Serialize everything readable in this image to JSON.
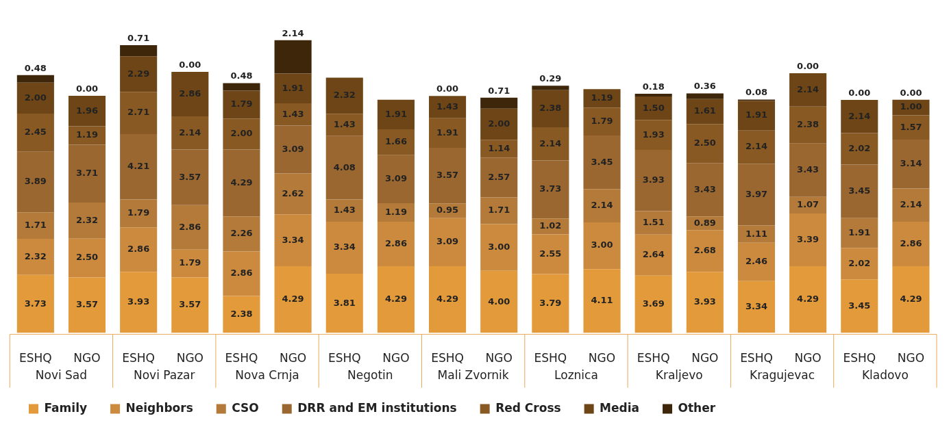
{
  "chart_data": {
    "type": "bar",
    "stacked": true,
    "legend": "bottom left",
    "categories": [
      "ESHQ",
      "NGO",
      "ESHQ",
      "NGO",
      "ESHQ",
      "NGO",
      "ESHQ",
      "NGO",
      "ESHQ",
      "NGO",
      "ESHQ",
      "NGO",
      "ESHQ",
      "NGO",
      "ESHQ",
      "NGO",
      "ESHQ",
      "NGO"
    ],
    "annotations": [
      "Novi Sad",
      "Novi Pazar",
      "Nova Crnja",
      "Negotin",
      "Mali Zvornik",
      "Loznica",
      "Kraljevo",
      "Kragujevac",
      "Kladovo"
    ],
    "series": [
      {
        "name": "Family",
        "color": "#e39a3a",
        "values": [
          3.73,
          3.57,
          3.93,
          3.57,
          2.38,
          4.29,
          3.81,
          4.29,
          4.29,
          4.0,
          3.79,
          4.11,
          3.69,
          3.93,
          3.34,
          4.29,
          3.45,
          4.29
        ],
        "value_labels": [
          "3.73",
          "3.57",
          "3.93",
          "3.57",
          "2.38",
          "4.29",
          "3.81",
          "4.29",
          "4.29",
          "4.00",
          "3.79",
          "4.11",
          "3.69",
          "3.93",
          "3.34",
          "4.29",
          "3.45",
          "4.29"
        ]
      },
      {
        "name": "Neighbors",
        "color": "#cc8a3f",
        "values": [
          2.32,
          2.5,
          2.86,
          1.79,
          2.86,
          3.34,
          3.34,
          2.86,
          3.09,
          3.0,
          2.55,
          3.0,
          2.64,
          2.68,
          2.46,
          3.39,
          2.02,
          2.86
        ],
        "value_labels": [
          "2.32",
          "2.50",
          "2.86",
          "1.79",
          "2.86",
          "3.34",
          "3.34",
          "2.86",
          "3.09",
          "3.00",
          "2.55",
          "3.00",
          "2.64",
          "2.68",
          "2.46",
          "3.39",
          "2.02",
          "2.86"
        ]
      },
      {
        "name": "CSO",
        "color": "#b37a3a",
        "values": [
          1.71,
          2.32,
          1.79,
          2.86,
          2.26,
          2.62,
          1.43,
          1.19,
          0.95,
          1.71,
          1.02,
          2.14,
          1.51,
          0.89,
          1.11,
          1.07,
          1.91,
          2.14
        ],
        "value_labels": [
          "1.71",
          "2.32",
          "1.79",
          "2.86",
          "2.26",
          "2.62",
          "1.43",
          "1.19",
          "0.95",
          "1.71",
          "1.02",
          "2.14",
          "1.51",
          "0.89",
          "1.11",
          "1.07",
          "1.91",
          "2.14"
        ]
      },
      {
        "name": "DRR and EM institutions",
        "color": "#9a6730",
        "values": [
          3.89,
          3.71,
          4.21,
          3.57,
          4.29,
          3.09,
          4.08,
          3.09,
          3.57,
          2.57,
          3.73,
          3.45,
          3.93,
          3.43,
          3.97,
          3.43,
          3.45,
          3.14
        ],
        "value_labels": [
          "3.89",
          "3.71",
          "4.21",
          "3.57",
          "4.29",
          "3.09",
          "4.08",
          "3.09",
          "3.57",
          "2.57",
          "3.73",
          "3.45",
          "3.93",
          "3.43",
          "3.97",
          "3.43",
          "3.45",
          "3.14"
        ]
      },
      {
        "name": "Red Cross",
        "color": "#885923",
        "values": [
          2.45,
          1.19,
          2.71,
          2.14,
          2.0,
          1.43,
          1.43,
          1.66,
          1.91,
          1.14,
          2.14,
          1.79,
          1.93,
          2.5,
          2.14,
          2.38,
          2.02,
          1.57
        ],
        "value_labels": [
          "2.45",
          "1.19",
          "2.71",
          "2.14",
          "2.00",
          "1.43",
          "1.43",
          "1.66",
          "1.91",
          "1.14",
          "2.14",
          "1.79",
          "1.93",
          "2.50",
          "2.14",
          "2.38",
          "2.02",
          "1.57"
        ]
      },
      {
        "name": "Media",
        "color": "#6d4516",
        "values": [
          2.0,
          1.96,
          2.29,
          2.86,
          1.79,
          1.91,
          2.32,
          1.91,
          1.43,
          2.0,
          2.38,
          1.19,
          1.5,
          1.61,
          1.91,
          2.14,
          2.14,
          1.0
        ],
        "value_labels": [
          "2.00",
          "1.96",
          "2.29",
          "2.86",
          "1.79",
          "1.91",
          "2.32",
          "1.91",
          "1.43",
          "2.00",
          "2.38",
          "1.19",
          "1.50",
          "1.61",
          "1.91",
          "2.14",
          "2.14",
          "1.00"
        ]
      },
      {
        "name": "Other",
        "color": "#3d2609",
        "values": [
          0.48,
          0.0,
          0.71,
          0.0,
          0.48,
          2.14,
          null,
          null,
          0.0,
          0.71,
          0.29,
          null,
          0.18,
          0.36,
          0.08,
          0.0,
          0.0,
          0.0
        ],
        "value_labels": [
          "0.48",
          "0.00",
          "0.71",
          "0.00",
          "0.48",
          "2.14",
          null,
          null,
          "0.00",
          "0.71",
          "0.29",
          null,
          "0.18",
          "0.36",
          "0.08",
          "0.00",
          "0.00",
          "0.00"
        ]
      }
    ]
  }
}
